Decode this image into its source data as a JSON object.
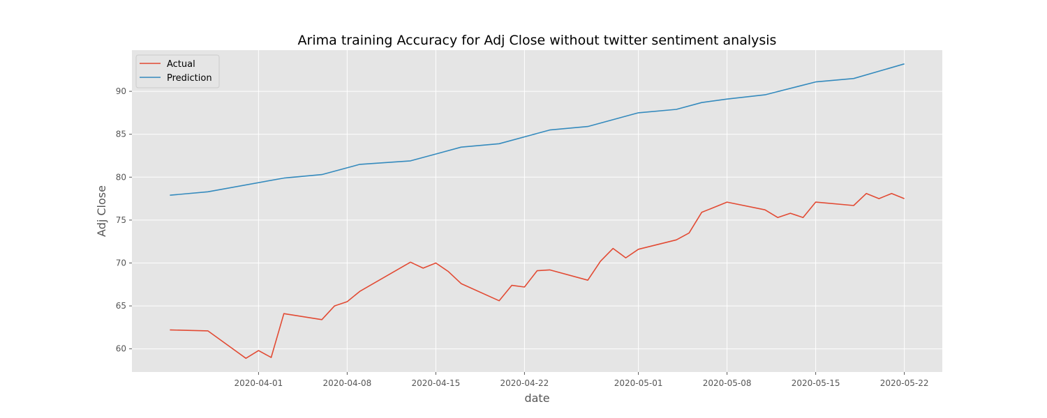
{
  "chart_data": {
    "type": "line",
    "title": "Arima training Accuracy for Adj Close without twitter sentiment analysis",
    "xlabel": "date",
    "ylabel": "Adj Close",
    "x_axis": "date",
    "xlim": [
      "2020-03-22",
      "2020-05-25"
    ],
    "ylim": [
      57.3,
      94.8
    ],
    "xticks": [
      "2020-04-01",
      "2020-04-08",
      "2020-04-15",
      "2020-04-22",
      "2020-05-01",
      "2020-05-08",
      "2020-05-15",
      "2020-05-22"
    ],
    "yticks": [
      60,
      65,
      70,
      75,
      80,
      85,
      90
    ],
    "grid": true,
    "legend": {
      "position": "top-left",
      "entries": [
        "Actual",
        "Prediction"
      ]
    },
    "series": [
      {
        "name": "Actual",
        "color": "#E24A33",
        "x": [
          "2020-03-25",
          "2020-03-28",
          "2020-03-31",
          "2020-04-01",
          "2020-04-02",
          "2020-04-03",
          "2020-04-06",
          "2020-04-07",
          "2020-04-08",
          "2020-04-09",
          "2020-04-13",
          "2020-04-14",
          "2020-04-15",
          "2020-04-16",
          "2020-04-17",
          "2020-04-20",
          "2020-04-21",
          "2020-04-22",
          "2020-04-23",
          "2020-04-24",
          "2020-04-27",
          "2020-04-28",
          "2020-04-29",
          "2020-04-30",
          "2020-05-01",
          "2020-05-04",
          "2020-05-05",
          "2020-05-06",
          "2020-05-08",
          "2020-05-11",
          "2020-05-12",
          "2020-05-13",
          "2020-05-14",
          "2020-05-15",
          "2020-05-18",
          "2020-05-19",
          "2020-05-20",
          "2020-05-21",
          "2020-05-22"
        ],
        "values": [
          62.2,
          62.1,
          58.9,
          59.8,
          59.0,
          64.1,
          63.4,
          65.0,
          65.5,
          66.7,
          70.1,
          69.4,
          70.0,
          69.0,
          67.6,
          65.6,
          67.4,
          67.2,
          69.1,
          69.2,
          68.0,
          70.2,
          71.7,
          70.6,
          71.6,
          72.7,
          73.5,
          75.9,
          77.1,
          76.2,
          75.3,
          75.8,
          75.3,
          77.1,
          76.7,
          78.1,
          77.5,
          78.1,
          77.5
        ]
      },
      {
        "name": "Prediction",
        "color": "#348ABD",
        "x": [
          "2020-03-25",
          "2020-03-28",
          "2020-04-03",
          "2020-04-06",
          "2020-04-09",
          "2020-04-13",
          "2020-04-17",
          "2020-04-20",
          "2020-04-24",
          "2020-04-27",
          "2020-05-01",
          "2020-05-04",
          "2020-05-06",
          "2020-05-08",
          "2020-05-11",
          "2020-05-15",
          "2020-05-18",
          "2020-05-22"
        ],
        "values": [
          77.9,
          78.3,
          79.9,
          80.3,
          81.5,
          81.9,
          83.5,
          83.9,
          85.5,
          85.9,
          87.5,
          87.9,
          88.7,
          89.1,
          89.6,
          91.1,
          91.5,
          93.2
        ]
      }
    ]
  }
}
